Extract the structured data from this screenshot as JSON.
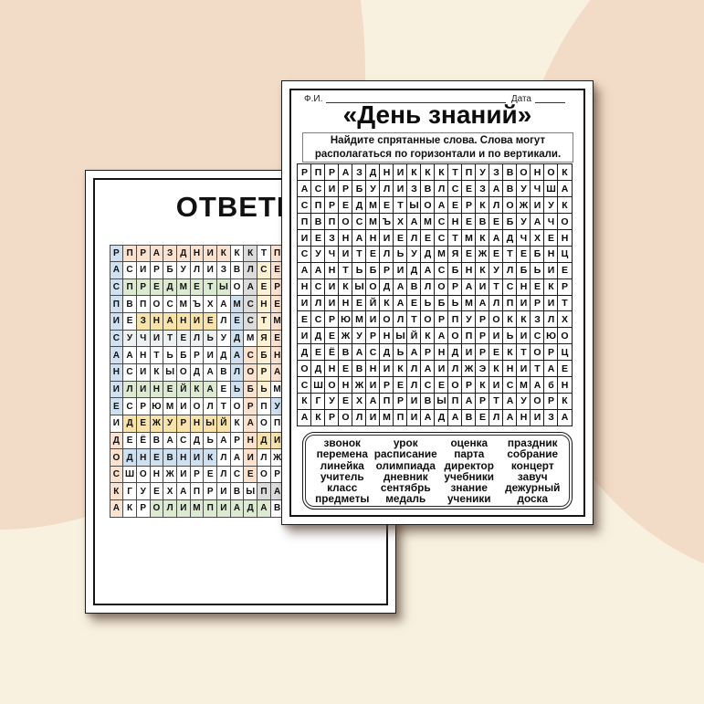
{
  "background": {
    "base_color": "#f9f1e0",
    "blob_color": "#f2dbc7"
  },
  "grid_rows": [
    "РПРАЗДНИКККТПУЗВОНОК",
    "АСИРБУЛИЗВЛСЕЗАВУЧША",
    "СПРЕДМЕТЫОАЕРКЛОЖИУК",
    "ПВПОСМЪХАМСНЕВЕБУАЧО",
    "ИЕЗНАНИЕЛЕСТМКАДЧХЕН",
    "СУЧИТЕЛЬУДМЯЕЖЕТЕБНЦ",
    "ААНТЬБРИДАСБНКУЛБЬИЕ",
    "НСИКЫОДАВЛОРАИТСНЕКР",
    "ИЛИНЕЙКАЕЬБЬМАЛПИРИТ",
    "ЕСРЮМИОЛТОРПУРОККЗЛХ",
    "ИДЕЖУРНЫЙКАОПРИЬИСЮО",
    "ДЕЁВАСДЬАРНДИРЕКТОРЦ",
    "ОДНЕВНИКЛАИЛЖЭКНИТАЕ",
    "СШОНЖИРЕЛСЕОРКИСМАбН",
    "КГУЕХАПРИВЫПАРТАУОРК",
    "АКРОЛИМПИАДАВЕЛАНИЗА"
  ],
  "back_page": {
    "title": "ОТВЕТЫ",
    "highlight_colors": {
      "blue": "#cfe1f0",
      "peach": "#fbe2cf",
      "green": "#dcead2",
      "gold": "#f8e3aa",
      "pale_yellow": "#fcf2d3",
      "gray": "#dcdcdc",
      "light_gray": "#eef1f1"
    },
    "answers": [
      {
        "word": "РАСПИСАНИЕ",
        "row": 1,
        "col": 1,
        "dir": "v",
        "color": "#cfe1f0"
      },
      {
        "word": "ПРАЗДНИК",
        "row": 1,
        "col": 2,
        "dir": "h",
        "color": "#fbe2cf"
      },
      {
        "word": "КЛАСС",
        "row": 1,
        "col": 11,
        "dir": "v",
        "color": "#dcdcdc"
      },
      {
        "word": "ПЕРЕМЕНА",
        "row": 1,
        "col": 13,
        "dir": "v",
        "color": "#fbe2cf"
      },
      {
        "word": "ЗВОНОК",
        "row": 1,
        "col": 15,
        "dir": "h",
        "color": null
      },
      {
        "word": "СЕНТЯБРЬ",
        "row": 2,
        "col": 12,
        "dir": "v",
        "color": "#fcf2d3"
      },
      {
        "word": "ЗАВУЧ",
        "row": 2,
        "col": 14,
        "dir": "h",
        "color": null
      },
      {
        "word": "ПРЕДМЕТЫ",
        "row": 3,
        "col": 2,
        "dir": "h",
        "color": "#dcead2"
      },
      {
        "word": "УЧЕНИКИ",
        "row": 3,
        "col": 19,
        "dir": "v",
        "color": null
      },
      {
        "word": "КОНЦЕРТ",
        "row": 3,
        "col": 20,
        "dir": "v",
        "color": null
      },
      {
        "word": "МЕДАЛЬ",
        "row": 4,
        "col": 10,
        "dir": "v",
        "color": "#cfe1f0"
      },
      {
        "word": "УЧЕБНИКИ",
        "row": 4,
        "col": 17,
        "dir": "v",
        "color": null
      },
      {
        "word": "ЗНАНИЕ",
        "row": 5,
        "col": 3,
        "dir": "h",
        "color": "#f8e3aa"
      },
      {
        "word": "УЧИТЕЛЬ",
        "row": 6,
        "col": 2,
        "dir": "h",
        "color": "#eef1f1"
      },
      {
        "word": "СОБРАНИЕ",
        "row": 7,
        "col": 11,
        "dir": "v",
        "color": "#fbe2cf"
      },
      {
        "word": "ЛИНЕЙКА",
        "row": 9,
        "col": 2,
        "dir": "h",
        "color": "#dcead2"
      },
      {
        "word": "УРОК",
        "row": 10,
        "col": 13,
        "dir": "h",
        "color": "#cfe1f0"
      },
      {
        "word": "ДЕЖУРНЫЙ",
        "row": 11,
        "col": 2,
        "dir": "h",
        "color": "#f8e3aa"
      },
      {
        "word": "ОЦЕНКА",
        "row": 11,
        "col": 20,
        "dir": "v",
        "color": null
      },
      {
        "word": "ДОСКА",
        "row": 12,
        "col": 1,
        "dir": "v",
        "color": "#fbe2cf"
      },
      {
        "word": "ДИРЕКТОР",
        "row": 12,
        "col": 12,
        "dir": "h",
        "color": "#f8e3aa"
      },
      {
        "word": "ДНЕВНИК",
        "row": 13,
        "col": 2,
        "dir": "h",
        "color": "#cfe1f0"
      },
      {
        "word": "ПАРТА",
        "row": 15,
        "col": 12,
        "dir": "h",
        "color": "#dcdcdc"
      },
      {
        "word": "ОЛИМПИАДА",
        "row": 16,
        "col": 4,
        "dir": "h",
        "color": "#dcead2"
      }
    ]
  },
  "front_page": {
    "name_label": "Ф.И.",
    "date_label": "Дата",
    "title": "«День знаний»",
    "instructions": [
      "Найдите спрятанные слова. Слова могут",
      "располагаться по горизонтали и по вертикали."
    ],
    "word_list_columns": [
      [
        "звонок",
        "перемена",
        "линейка",
        "учитель",
        "класс",
        "предметы"
      ],
      [
        "урок",
        "расписание",
        "олимпиада",
        "дневник",
        "сентябрь",
        "медаль"
      ],
      [
        "оценка",
        "парта",
        "директор",
        "учебники",
        "знание",
        "ученики"
      ],
      [
        "праздник",
        "собрание",
        "концерт",
        "завуч",
        "дежурный",
        "доска"
      ]
    ]
  }
}
